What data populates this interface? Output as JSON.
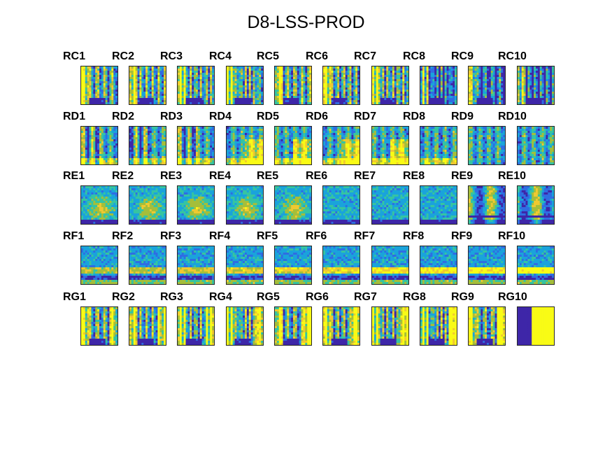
{
  "figure_title": "D8-LSS-PROD",
  "chart_data": {
    "type": "heatmap",
    "title": "D8-LSS-PROD",
    "rows": [
      {
        "labels": [
          "RC1",
          "RC2",
          "RC3",
          "RC4",
          "RC5",
          "RC6",
          "RC7",
          "RC8",
          "RC9",
          "RC10"
        ]
      },
      {
        "labels": [
          "RD1",
          "RD2",
          "RD3",
          "RD4",
          "RD5",
          "RD6",
          "RD7",
          "RD8",
          "RD9",
          "RD10"
        ]
      },
      {
        "labels": [
          "RE1",
          "RE2",
          "RE3",
          "RE4",
          "RE5",
          "RE6",
          "RE7",
          "RE8",
          "RE9",
          "RE10"
        ]
      },
      {
        "labels": [
          "RF1",
          "RF2",
          "RF3",
          "RF4",
          "RF5",
          "RF6",
          "RF7",
          "RF8",
          "RF9",
          "RF10"
        ]
      },
      {
        "labels": [
          "RG1",
          "RG2",
          "RG3",
          "RG4",
          "RG5",
          "RG6",
          "RG7",
          "RG8",
          "RG9",
          "RG10"
        ]
      }
    ],
    "colormap": [
      "#3e26a8",
      "#2f6de2",
      "#1aa3db",
      "#36c4a1",
      "#a5be3a",
      "#f0c930",
      "#f9fb15"
    ]
  }
}
